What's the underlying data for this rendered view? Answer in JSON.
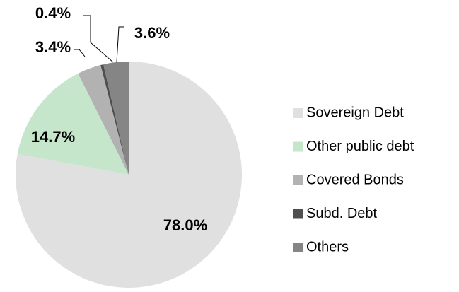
{
  "chart_data": {
    "type": "pie",
    "categories": [
      "Sovereign Debt",
      "Other public debt",
      "Covered Bonds",
      "Subd. Debt",
      "Others"
    ],
    "values": [
      78.0,
      14.7,
      3.4,
      0.4,
      3.6
    ],
    "value_labels": [
      "78.0%",
      "14.7%",
      "3.4%",
      "0.4%",
      "3.6%"
    ],
    "colors": [
      "#e0e0e0",
      "#c6e6cc",
      "#b2b2b2",
      "#4f4f4f",
      "#858585"
    ],
    "legend": "right"
  }
}
